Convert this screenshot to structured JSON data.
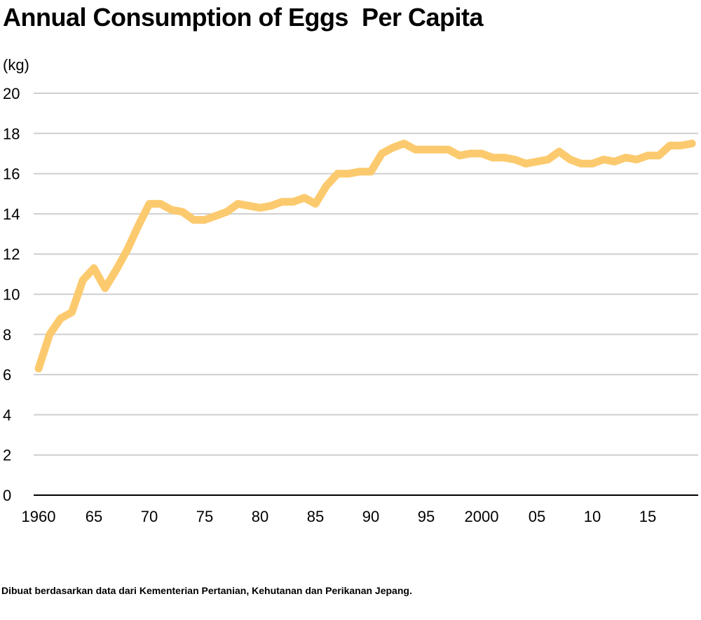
{
  "chart_data": {
    "type": "line",
    "title": "Annual Consumption of Eggs  Per Capita",
    "ylabel": "(kg)",
    "xlabel": "",
    "ylim": [
      0,
      20
    ],
    "yticks": [
      "0",
      "2",
      "4",
      "6",
      "8",
      "10",
      "12",
      "14",
      "16",
      "18",
      "20"
    ],
    "xticks": [
      {
        "year": 1960,
        "label": "1960"
      },
      {
        "year": 1965,
        "label": "65"
      },
      {
        "year": 1970,
        "label": "70"
      },
      {
        "year": 1975,
        "label": "75"
      },
      {
        "year": 1980,
        "label": "80"
      },
      {
        "year": 1985,
        "label": "85"
      },
      {
        "year": 1990,
        "label": "90"
      },
      {
        "year": 1995,
        "label": "95"
      },
      {
        "year": 2000,
        "label": "2000"
      },
      {
        "year": 2005,
        "label": "05"
      },
      {
        "year": 2010,
        "label": "10"
      },
      {
        "year": 2015,
        "label": "15"
      }
    ],
    "grid": true,
    "line_color": "#fcca6e",
    "series": [
      {
        "x": [
          1960,
          1961,
          1962,
          1963,
          1964,
          1965,
          1966,
          1967,
          1968,
          1969,
          1970,
          1971,
          1972,
          1973,
          1974,
          1975,
          1976,
          1977,
          1978,
          1979,
          1980,
          1981,
          1982,
          1983,
          1984,
          1985,
          1986,
          1987,
          1988,
          1989,
          1990,
          1991,
          1992,
          1993,
          1994,
          1995,
          1996,
          1997,
          1998,
          1999,
          2000,
          2001,
          2002,
          2003,
          2004,
          2005,
          2006,
          2007,
          2008,
          2009,
          2010,
          2011,
          2012,
          2013,
          2014,
          2015,
          2016,
          2017,
          2018,
          2019
        ],
        "values": [
          6.3,
          8.0,
          8.8,
          9.1,
          10.7,
          11.3,
          10.3,
          11.2,
          12.2,
          13.4,
          14.5,
          14.5,
          14.2,
          14.1,
          13.7,
          13.7,
          13.9,
          14.1,
          14.5,
          14.4,
          14.3,
          14.4,
          14.6,
          14.6,
          14.8,
          14.5,
          15.4,
          16.0,
          16.0,
          16.1,
          16.1,
          17.0,
          17.3,
          17.5,
          17.2,
          17.2,
          17.2,
          17.2,
          16.9,
          17.0,
          17.0,
          16.8,
          16.8,
          16.7,
          16.5,
          16.6,
          16.7,
          17.1,
          16.7,
          16.5,
          16.5,
          16.7,
          16.6,
          16.8,
          16.7,
          16.9,
          16.9,
          17.4,
          17.4,
          17.5
        ]
      }
    ]
  },
  "footer": {
    "source": "Dibuat berdasarkan data dari Kementerian Pertanian, Kehutanan dan Perikanan Jepang."
  }
}
